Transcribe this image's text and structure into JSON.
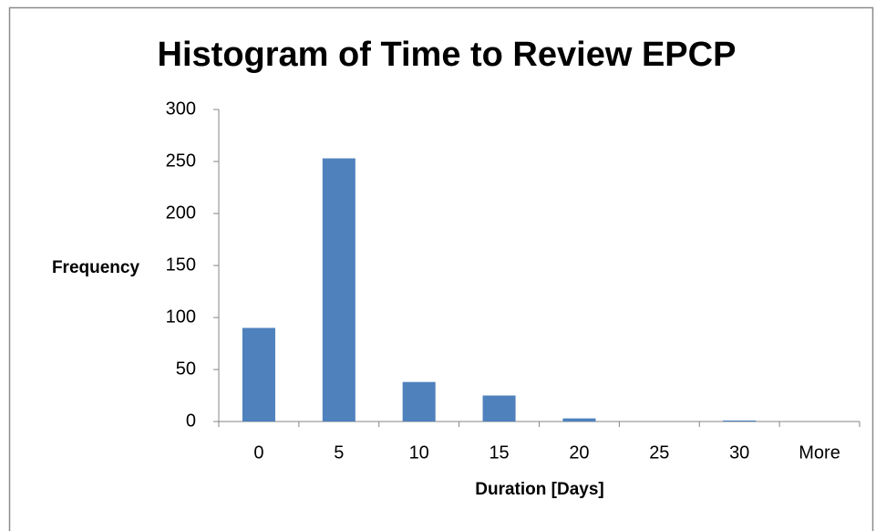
{
  "chart_data": {
    "type": "bar",
    "title": "Histogram of Time to Review EPCP",
    "x_label": "Duration [Days]",
    "y_label": "Frequency",
    "categories": [
      "0",
      "5",
      "10",
      "15",
      "20",
      "25",
      "30",
      "More"
    ],
    "values": [
      90,
      253,
      38,
      25,
      3,
      0,
      1,
      0
    ],
    "color": "#4f81bd",
    "ylim": [
      0,
      300
    ],
    "yticks": [
      0,
      50,
      100,
      150,
      200,
      250,
      300
    ],
    "grid": false
  }
}
